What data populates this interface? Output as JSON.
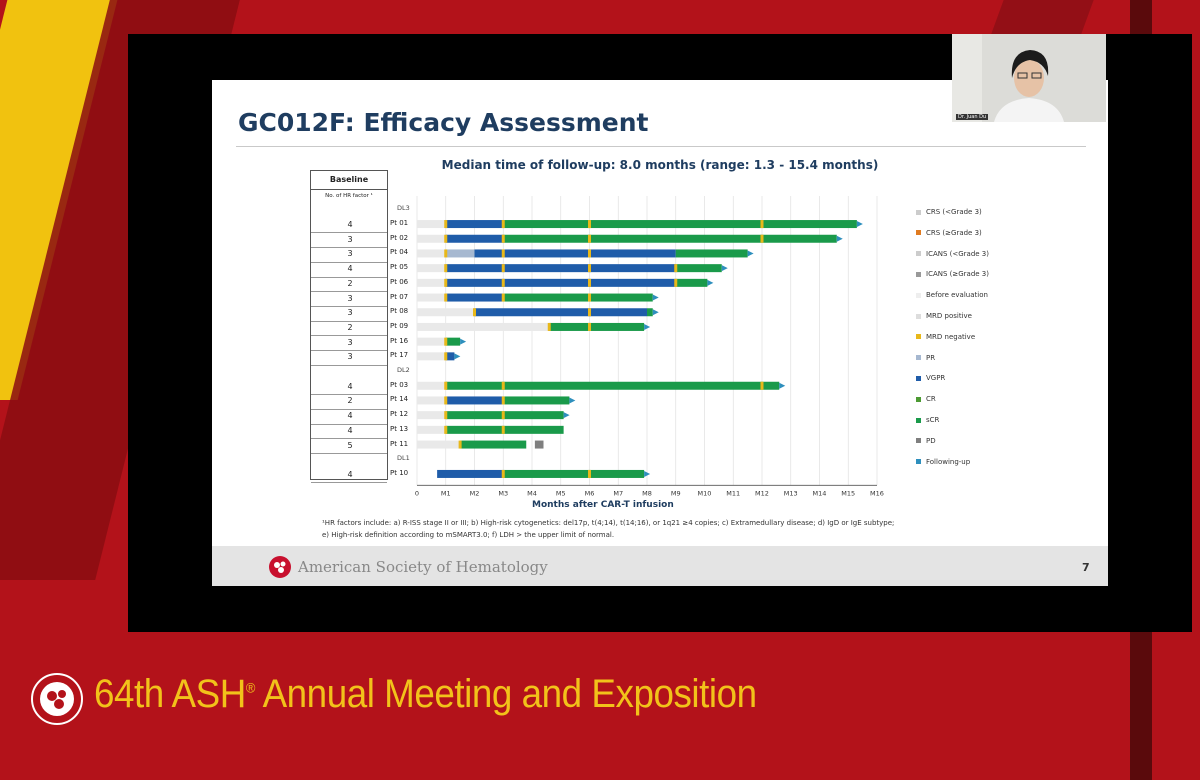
{
  "slide": {
    "title": "GC012F: Efficacy Assessment",
    "subtitle": "Median time of follow-up: 8.0 months (range: 1.3 - 15.4 months)",
    "page_number": "7",
    "footer_org": "American Society of Hematology",
    "footnote_line1": "¹HR factors include: a) R-ISS stage II or III; b) High-risk cytogenetics: del17p, t(4;14), t(14;16), or 1q21 ≥4 copies; c) Extramedullary disease; d) IgD or IgE subtype;",
    "footnote_line2": "e) High-risk definition according to mSMART3.0; f) LDH > the upper limit of normal.",
    "table_header": "Baseline",
    "table_subheader": "No. of HR factor ¹"
  },
  "speaker": {
    "name": "Dr. Juan Du"
  },
  "banner": {
    "prefix": "64th ASH",
    "suffix": " Annual Meeting and Exposition",
    "reg": "®"
  },
  "chart_data": {
    "type": "bar",
    "subtype": "swimmer",
    "xlabel": "Months after CAR-T infusion",
    "xlim": [
      0,
      16
    ],
    "x_ticks": [
      "0",
      "M1",
      "M2",
      "M3",
      "M4",
      "M5",
      "M6",
      "M7",
      "M8",
      "M9",
      "M10",
      "M11",
      "M12",
      "M13",
      "M14",
      "M15",
      "M16"
    ],
    "colors": {
      "before_eval": "#e9e9e9",
      "pr": "#a6b8d0",
      "vgpr": "#1f5ca9",
      "cr": "#4c9a33",
      "scr": "#1a9a4a",
      "pd": "#7f7f7f",
      "mrd_negative": "#e8b81a",
      "following_up": "#2e8fbd"
    },
    "legend": [
      {
        "label": "CRS (<Grade 3)",
        "key": "crs_lt3",
        "color": "#cccccc"
      },
      {
        "label": "CRS (≥Grade 3)",
        "key": "crs_ge3",
        "color": "#e07b20"
      },
      {
        "label": "ICANS (<Grade 3)",
        "key": "icans_lt3",
        "color": "#cccccc"
      },
      {
        "label": "ICANS (≥Grade 3)",
        "key": "icans_ge3",
        "color": "#999999"
      },
      {
        "label": "Before evaluation",
        "key": "before_eval",
        "color": "#eeeeee"
      },
      {
        "label": "MRD positive",
        "key": "mrd_positive",
        "color": "#dddddd"
      },
      {
        "label": "MRD negative",
        "key": "mrd_negative",
        "color": "#e8b81a"
      },
      {
        "label": "PR",
        "key": "pr",
        "color": "#a6b8d0"
      },
      {
        "label": "VGPR",
        "key": "vgpr",
        "color": "#1f5ca9"
      },
      {
        "label": "CR",
        "key": "cr",
        "color": "#4c9a33"
      },
      {
        "label": "sCR",
        "key": "scr",
        "color": "#1a9a4a"
      },
      {
        "label": "PD",
        "key": "pd",
        "color": "#7f7f7f"
      },
      {
        "label": "Following-up",
        "key": "following_up",
        "color": "#2e8fbd"
      }
    ],
    "groups": [
      {
        "label": "DL3",
        "patients": [
          {
            "id": "Pt 01",
            "hr": "4",
            "segments": [
              [
                "before_eval",
                0,
                1
              ],
              [
                "vgpr",
                1,
                3
              ],
              [
                "scr",
                3,
                15.3
              ]
            ],
            "mrd": [
              1,
              3,
              6,
              12
            ],
            "following": true
          },
          {
            "id": "Pt 02",
            "hr": "3",
            "segments": [
              [
                "before_eval",
                0,
                1
              ],
              [
                "vgpr",
                1,
                3
              ],
              [
                "scr",
                3,
                14.6
              ]
            ],
            "mrd": [
              1,
              3,
              6,
              12
            ],
            "following": true
          },
          {
            "id": "Pt 04",
            "hr": "3",
            "segments": [
              [
                "before_eval",
                0,
                1
              ],
              [
                "pr",
                1,
                2
              ],
              [
                "vgpr",
                2,
                9
              ],
              [
                "scr",
                9,
                11.5
              ]
            ],
            "mrd": [
              1,
              3,
              6
            ],
            "following": true
          },
          {
            "id": "Pt 05",
            "hr": "4",
            "segments": [
              [
                "before_eval",
                0,
                1
              ],
              [
                "vgpr",
                1,
                9
              ],
              [
                "scr",
                9,
                10.6
              ]
            ],
            "mrd": [
              1,
              3,
              6,
              9
            ],
            "following": true
          },
          {
            "id": "Pt 06",
            "hr": "2",
            "segments": [
              [
                "before_eval",
                0,
                1
              ],
              [
                "vgpr",
                1,
                9
              ],
              [
                "scr",
                9,
                10.1
              ]
            ],
            "mrd": [
              1,
              3,
              6,
              9
            ],
            "following": true
          },
          {
            "id": "Pt 07",
            "hr": "3",
            "segments": [
              [
                "before_eval",
                0,
                1
              ],
              [
                "vgpr",
                1,
                3
              ],
              [
                "scr",
                3,
                8.2
              ]
            ],
            "mrd": [
              1,
              3,
              6
            ],
            "following": true
          },
          {
            "id": "Pt 08",
            "hr": "3",
            "segments": [
              [
                "before_eval",
                0,
                2
              ],
              [
                "vgpr",
                2,
                8
              ],
              [
                "scr",
                8,
                8.2
              ]
            ],
            "mrd": [
              2,
              6
            ],
            "following": true
          },
          {
            "id": "Pt 09",
            "hr": "2",
            "segments": [
              [
                "before_eval",
                0,
                4.6
              ],
              [
                "scr",
                4.6,
                7.9
              ]
            ],
            "mrd": [
              4.6,
              6
            ],
            "following": true
          },
          {
            "id": "Pt 16",
            "hr": "3",
            "segments": [
              [
                "before_eval",
                0,
                1
              ],
              [
                "scr",
                1,
                1.5
              ]
            ],
            "mrd": [
              1
            ],
            "following": true
          },
          {
            "id": "Pt 17",
            "hr": "3",
            "segments": [
              [
                "before_eval",
                0,
                1
              ],
              [
                "vgpr",
                1,
                1.3
              ]
            ],
            "mrd": [
              1
            ],
            "following": true
          }
        ]
      },
      {
        "label": "DL2",
        "patients": [
          {
            "id": "Pt 03",
            "hr": "4",
            "segments": [
              [
                "before_eval",
                0,
                1
              ],
              [
                "scr",
                1,
                12.6
              ]
            ],
            "mrd": [
              1,
              3,
              12
            ],
            "following": true
          },
          {
            "id": "Pt 14",
            "hr": "2",
            "segments": [
              [
                "before_eval",
                0,
                1
              ],
              [
                "vgpr",
                1,
                3
              ],
              [
                "scr",
                3,
                5.3
              ]
            ],
            "mrd": [
              1,
              3
            ],
            "following": true
          },
          {
            "id": "Pt 12",
            "hr": "4",
            "segments": [
              [
                "before_eval",
                0,
                1
              ],
              [
                "scr",
                1,
                5.1
              ]
            ],
            "mrd": [
              1,
              3
            ],
            "following": true
          },
          {
            "id": "Pt 13",
            "hr": "4",
            "segments": [
              [
                "before_eval",
                0,
                1
              ],
              [
                "scr",
                1,
                5.1
              ]
            ],
            "mrd": [
              1,
              3
            ],
            "following": false
          },
          {
            "id": "Pt 11",
            "hr": "5",
            "segments": [
              [
                "before_eval",
                0,
                1.5
              ],
              [
                "scr",
                1.5,
                3.8
              ],
              [
                "pd",
                4.1,
                4.4
              ]
            ],
            "mrd": [
              1.5
            ],
            "following": false
          }
        ]
      },
      {
        "label": "DL1",
        "patients": [
          {
            "id": "Pt 10",
            "hr": "4",
            "segments": [
              [
                "vgpr",
                0.7,
                3
              ],
              [
                "scr",
                3,
                7.9
              ]
            ],
            "mrd": [
              3,
              6
            ],
            "following": true
          }
        ]
      }
    ]
  }
}
